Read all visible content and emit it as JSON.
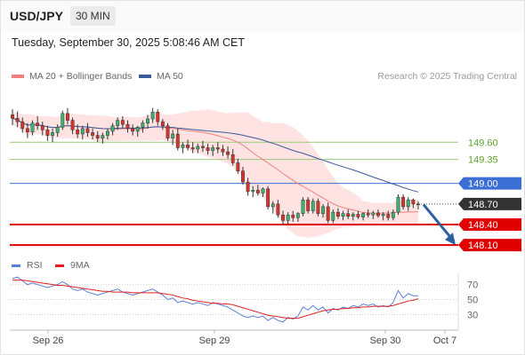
{
  "header": {
    "symbol": "USD/JPY",
    "timeframe": "30 MIN"
  },
  "timestamp": "Tuesday, September 30, 2025 5:08:46 AM CET",
  "legend": {
    "ma20": {
      "label": "MA 20 + Bollinger Bands",
      "color": "#f08080"
    },
    "ma50": {
      "label": "MA 50",
      "color": "#3a5a9a"
    }
  },
  "watermark": "Research © 2025 Trading Central",
  "rsi_legend": {
    "rsi": {
      "label": "RSI",
      "color": "#5b7fd6"
    },
    "ma9": {
      "label": "9MA",
      "color": "#e02020"
    }
  },
  "chart_data": [
    {
      "type": "candlestick",
      "x_labels": [
        "Sep 26",
        "Sep 29",
        "Sep 30",
        "Oct 7"
      ],
      "ylim": [
        147.96,
        150.38
      ],
      "levels": [
        {
          "value": 149.6,
          "label": "149.60",
          "kind": "resistance-weak",
          "color": "#9cc87a"
        },
        {
          "value": 149.35,
          "label": "149.35",
          "kind": "resistance-weak",
          "color": "#9cc87a"
        },
        {
          "value": 149.0,
          "label": "149.00",
          "kind": "pivot",
          "color": "#3b6fd4"
        },
        {
          "value": 148.7,
          "label": "148.70",
          "kind": "last-price",
          "color": "#333333"
        },
        {
          "value": 148.4,
          "label": "148.40",
          "kind": "support",
          "color": "#e00000"
        },
        {
          "value": 148.1,
          "label": "148.10",
          "kind": "support",
          "color": "#e00000"
        }
      ],
      "forecast_arrow": {
        "from": 148.69,
        "to": 148.1,
        "color": "#2e5f9e"
      },
      "candles": [
        [
          150.0,
          150.08,
          149.85,
          149.95
        ],
        [
          149.95,
          150.05,
          149.82,
          149.9
        ],
        [
          149.9,
          149.96,
          149.74,
          149.8
        ],
        [
          149.8,
          149.88,
          149.66,
          149.75
        ],
        [
          149.75,
          149.92,
          149.7,
          149.88
        ],
        [
          149.88,
          149.98,
          149.78,
          149.84
        ],
        [
          149.84,
          149.9,
          149.7,
          149.78
        ],
        [
          149.78,
          149.84,
          149.62,
          149.7
        ],
        [
          149.7,
          149.8,
          149.6,
          149.74
        ],
        [
          149.74,
          149.86,
          149.68,
          149.82
        ],
        [
          149.82,
          150.06,
          149.78,
          150.02
        ],
        [
          150.02,
          150.1,
          149.86,
          149.92
        ],
        [
          149.92,
          149.96,
          149.72,
          149.78
        ],
        [
          149.78,
          149.86,
          149.66,
          149.72
        ],
        [
          149.72,
          149.84,
          149.64,
          149.8
        ],
        [
          149.8,
          149.88,
          149.68,
          149.74
        ],
        [
          149.74,
          149.8,
          149.64,
          149.7
        ],
        [
          149.7,
          149.76,
          149.6,
          149.66
        ],
        [
          149.66,
          149.74,
          149.58,
          149.7
        ],
        [
          149.7,
          149.8,
          149.64,
          149.76
        ],
        [
          149.76,
          149.88,
          149.7,
          149.84
        ],
        [
          149.84,
          149.96,
          149.78,
          149.92
        ],
        [
          149.92,
          149.98,
          149.8,
          149.86
        ],
        [
          149.86,
          149.92,
          149.74,
          149.8
        ],
        [
          149.8,
          149.86,
          149.7,
          149.76
        ],
        [
          149.76,
          149.84,
          149.68,
          149.82
        ],
        [
          149.82,
          149.92,
          149.74,
          149.88
        ],
        [
          149.88,
          150.0,
          149.8,
          149.94
        ],
        [
          149.94,
          150.1,
          149.88,
          150.04
        ],
        [
          150.04,
          150.08,
          149.84,
          149.9
        ],
        [
          149.9,
          149.94,
          149.78,
          149.84
        ],
        [
          149.84,
          149.88,
          149.62,
          149.66
        ],
        [
          149.66,
          149.78,
          149.56,
          149.72
        ],
        [
          149.72,
          149.8,
          149.48,
          149.52
        ],
        [
          149.52,
          149.6,
          149.44,
          149.56
        ],
        [
          149.56,
          149.64,
          149.48,
          149.52
        ],
        [
          149.52,
          149.6,
          149.44,
          149.5
        ],
        [
          149.5,
          149.58,
          149.44,
          149.54
        ],
        [
          149.54,
          149.62,
          149.46,
          149.52
        ],
        [
          149.52,
          149.58,
          149.42,
          149.48
        ],
        [
          149.48,
          149.56,
          149.4,
          149.52
        ],
        [
          149.52,
          149.6,
          149.44,
          149.5
        ],
        [
          149.5,
          149.56,
          149.4,
          149.46
        ],
        [
          149.46,
          149.54,
          149.36,
          149.42
        ],
        [
          149.42,
          149.5,
          149.26,
          149.3
        ],
        [
          149.3,
          149.36,
          149.14,
          149.18
        ],
        [
          149.18,
          149.24,
          148.98,
          149.02
        ],
        [
          149.02,
          149.08,
          148.82,
          148.88
        ],
        [
          148.88,
          148.96,
          148.8,
          148.9
        ],
        [
          148.9,
          148.98,
          148.82,
          148.86
        ],
        [
          148.86,
          148.94,
          148.8,
          148.92
        ],
        [
          148.92,
          148.96,
          148.62,
          148.66
        ],
        [
          148.66,
          148.74,
          148.56,
          148.7
        ],
        [
          148.7,
          148.76,
          148.5,
          148.54
        ],
        [
          148.54,
          148.6,
          148.4,
          148.46
        ],
        [
          148.46,
          148.58,
          148.4,
          148.54
        ],
        [
          148.54,
          148.6,
          148.44,
          148.5
        ],
        [
          148.5,
          148.58,
          148.44,
          148.56
        ],
        [
          148.56,
          148.8,
          148.52,
          148.76
        ],
        [
          148.76,
          148.8,
          148.56,
          148.6
        ],
        [
          148.6,
          148.78,
          148.56,
          148.74
        ],
        [
          148.74,
          148.78,
          148.52,
          148.56
        ],
        [
          148.56,
          148.7,
          148.5,
          148.66
        ],
        [
          148.66,
          148.72,
          148.42,
          148.46
        ],
        [
          148.46,
          148.62,
          148.42,
          148.58
        ],
        [
          148.58,
          148.64,
          148.48,
          148.52
        ],
        [
          148.52,
          148.6,
          148.46,
          148.56
        ],
        [
          148.56,
          148.62,
          148.48,
          148.52
        ],
        [
          148.52,
          148.58,
          148.46,
          148.55
        ],
        [
          148.55,
          148.6,
          148.48,
          148.51
        ],
        [
          148.51,
          148.58,
          148.46,
          148.56
        ],
        [
          148.56,
          148.62,
          148.5,
          148.54
        ],
        [
          148.54,
          148.6,
          148.48,
          148.57
        ],
        [
          148.57,
          148.62,
          148.5,
          148.53
        ],
        [
          148.53,
          148.58,
          148.46,
          148.55
        ],
        [
          148.55,
          148.6,
          148.46,
          148.5
        ],
        [
          148.5,
          148.62,
          148.46,
          148.58
        ],
        [
          148.58,
          148.84,
          148.54,
          148.8
        ],
        [
          148.8,
          148.84,
          148.62,
          148.66
        ],
        [
          148.66,
          148.8,
          148.6,
          148.76
        ],
        [
          148.76,
          148.78,
          148.64,
          148.7
        ],
        [
          148.7,
          148.74,
          148.62,
          148.69
        ]
      ]
    },
    {
      "type": "line",
      "name": "RSI",
      "ylim": [
        15,
        85
      ],
      "y_ticks": [
        70,
        50,
        30
      ],
      "series": [
        {
          "name": "RSI",
          "values": [
            78,
            80,
            75,
            70,
            72,
            70,
            68,
            66,
            68,
            70,
            74,
            70,
            64,
            62,
            64,
            60,
            58,
            56,
            58,
            60,
            62,
            64,
            60,
            58,
            56,
            58,
            60,
            62,
            64,
            60,
            56,
            50,
            52,
            46,
            48,
            46,
            44,
            46,
            44,
            42,
            46,
            44,
            42,
            40,
            36,
            32,
            28,
            26,
            28,
            26,
            28,
            22,
            26,
            22,
            20,
            26,
            24,
            28,
            40,
            36,
            42,
            36,
            40,
            32,
            38,
            36,
            40,
            38,
            42,
            40,
            44,
            42,
            44,
            40,
            42,
            40,
            46,
            62,
            52,
            58,
            55,
            55
          ]
        },
        {
          "name": "9MA",
          "values": [
            76,
            76,
            76,
            75,
            74,
            73,
            72,
            71,
            70,
            69,
            69,
            68,
            67,
            66,
            65,
            64,
            63,
            62,
            61,
            61,
            60,
            60,
            60,
            60,
            59,
            59,
            59,
            59,
            59,
            59,
            58,
            57,
            56,
            54,
            52,
            51,
            49,
            48,
            47,
            46,
            45,
            45,
            44,
            44,
            43,
            41,
            39,
            37,
            35,
            33,
            31,
            29,
            28,
            27,
            26,
            25,
            25,
            25,
            27,
            29,
            31,
            33,
            35,
            36,
            37,
            37,
            38,
            38,
            39,
            39,
            40,
            40,
            41,
            41,
            41,
            41,
            42,
            44,
            46,
            48,
            49,
            51
          ]
        }
      ]
    }
  ]
}
